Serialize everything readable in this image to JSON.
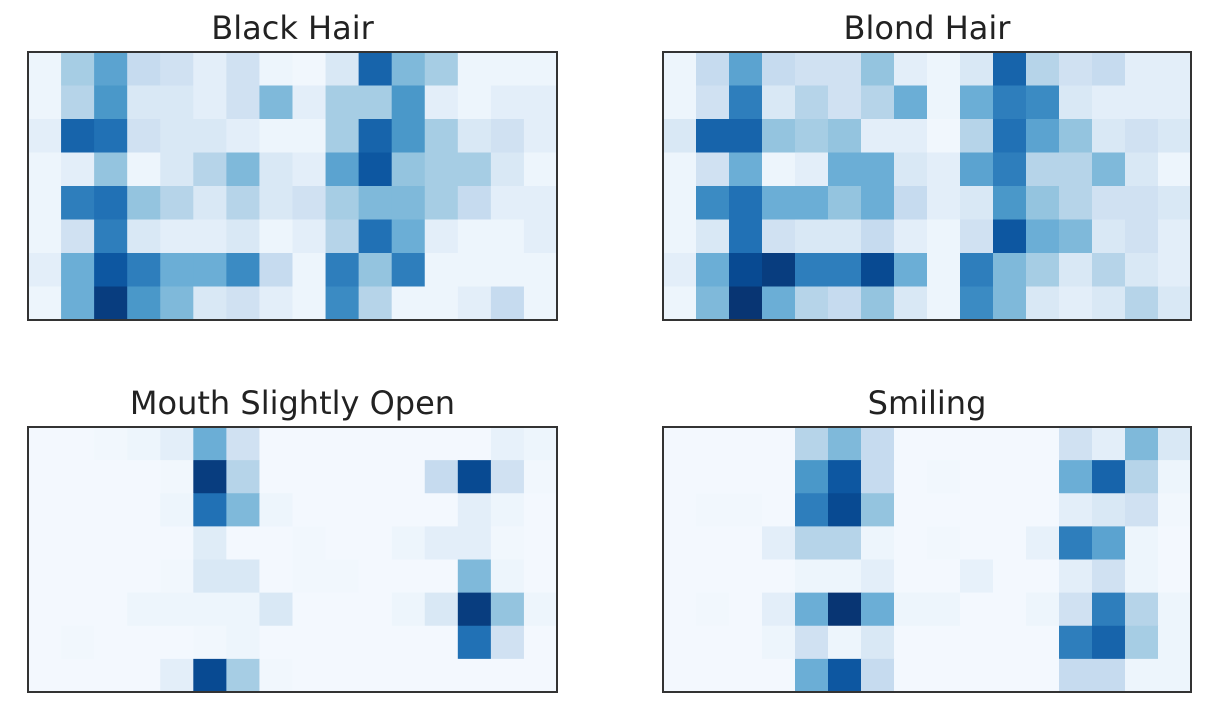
{
  "chart_data": [
    {
      "type": "heatmap",
      "title": "Black Hair",
      "colormap": "Blues",
      "zlim": [
        0,
        1
      ],
      "z": [
        [
          0.05,
          0.35,
          0.55,
          0.25,
          0.2,
          0.1,
          0.2,
          0.05,
          0.03,
          0.15,
          0.8,
          0.45,
          0.35,
          0.05,
          0.05,
          0.05
        ],
        [
          0.05,
          0.3,
          0.6,
          0.15,
          0.15,
          0.1,
          0.2,
          0.45,
          0.1,
          0.35,
          0.35,
          0.6,
          0.1,
          0.05,
          0.1,
          0.1
        ],
        [
          0.1,
          0.8,
          0.75,
          0.2,
          0.15,
          0.15,
          0.1,
          0.05,
          0.05,
          0.35,
          0.8,
          0.6,
          0.35,
          0.15,
          0.2,
          0.1
        ],
        [
          0.05,
          0.1,
          0.4,
          0.05,
          0.15,
          0.3,
          0.45,
          0.15,
          0.1,
          0.55,
          0.85,
          0.4,
          0.35,
          0.35,
          0.15,
          0.05
        ],
        [
          0.05,
          0.7,
          0.75,
          0.4,
          0.3,
          0.15,
          0.3,
          0.15,
          0.2,
          0.35,
          0.45,
          0.45,
          0.35,
          0.25,
          0.1,
          0.1
        ],
        [
          0.05,
          0.2,
          0.7,
          0.15,
          0.1,
          0.1,
          0.15,
          0.05,
          0.1,
          0.3,
          0.75,
          0.5,
          0.1,
          0.05,
          0.05,
          0.1
        ],
        [
          0.1,
          0.5,
          0.85,
          0.7,
          0.5,
          0.5,
          0.65,
          0.25,
          0.05,
          0.7,
          0.4,
          0.7,
          0.05,
          0.05,
          0.05,
          0.05
        ],
        [
          0.05,
          0.5,
          0.95,
          0.6,
          0.45,
          0.15,
          0.2,
          0.1,
          0.05,
          0.65,
          0.3,
          0.05,
          0.05,
          0.1,
          0.25,
          0.05
        ]
      ]
    },
    {
      "type": "heatmap",
      "title": "Blond Hair",
      "colormap": "Blues",
      "zlim": [
        0,
        1
      ],
      "z": [
        [
          0.05,
          0.25,
          0.55,
          0.25,
          0.2,
          0.2,
          0.4,
          0.1,
          0.05,
          0.15,
          0.8,
          0.3,
          0.2,
          0.25,
          0.1,
          0.1
        ],
        [
          0.05,
          0.2,
          0.7,
          0.15,
          0.3,
          0.2,
          0.3,
          0.5,
          0.05,
          0.5,
          0.7,
          0.65,
          0.15,
          0.1,
          0.1,
          0.1
        ],
        [
          0.15,
          0.8,
          0.8,
          0.4,
          0.35,
          0.4,
          0.1,
          0.1,
          0.03,
          0.3,
          0.75,
          0.55,
          0.4,
          0.15,
          0.2,
          0.15
        ],
        [
          0.05,
          0.2,
          0.5,
          0.05,
          0.1,
          0.5,
          0.5,
          0.15,
          0.1,
          0.55,
          0.7,
          0.3,
          0.3,
          0.45,
          0.15,
          0.05
        ],
        [
          0.05,
          0.65,
          0.75,
          0.5,
          0.5,
          0.4,
          0.5,
          0.25,
          0.1,
          0.15,
          0.6,
          0.4,
          0.3,
          0.2,
          0.2,
          0.15
        ],
        [
          0.05,
          0.15,
          0.75,
          0.2,
          0.15,
          0.15,
          0.25,
          0.1,
          0.05,
          0.2,
          0.85,
          0.5,
          0.45,
          0.15,
          0.2,
          0.1
        ],
        [
          0.1,
          0.5,
          0.9,
          0.95,
          0.7,
          0.7,
          0.9,
          0.5,
          0.05,
          0.7,
          0.45,
          0.35,
          0.15,
          0.3,
          0.15,
          0.1
        ],
        [
          0.05,
          0.45,
          0.98,
          0.5,
          0.3,
          0.25,
          0.4,
          0.15,
          0.05,
          0.65,
          0.45,
          0.15,
          0.1,
          0.15,
          0.3,
          0.15
        ]
      ]
    },
    {
      "type": "heatmap",
      "title": "Mouth Slightly Open",
      "colormap": "Blues",
      "zlim": [
        0,
        1
      ],
      "z": [
        [
          0.02,
          0.02,
          0.03,
          0.05,
          0.1,
          0.5,
          0.2,
          0.02,
          0.02,
          0.02,
          0.02,
          0.02,
          0.02,
          0.02,
          0.08,
          0.05
        ],
        [
          0.02,
          0.02,
          0.02,
          0.02,
          0.03,
          0.95,
          0.3,
          0.02,
          0.02,
          0.02,
          0.02,
          0.02,
          0.25,
          0.9,
          0.2,
          0.03
        ],
        [
          0.02,
          0.02,
          0.02,
          0.02,
          0.05,
          0.75,
          0.45,
          0.05,
          0.02,
          0.02,
          0.02,
          0.02,
          0.02,
          0.1,
          0.05,
          0.02
        ],
        [
          0.02,
          0.02,
          0.02,
          0.02,
          0.02,
          0.12,
          0.02,
          0.02,
          0.03,
          0.02,
          0.02,
          0.05,
          0.1,
          0.1,
          0.03,
          0.02
        ],
        [
          0.02,
          0.02,
          0.02,
          0.02,
          0.03,
          0.15,
          0.15,
          0.02,
          0.03,
          0.03,
          0.02,
          0.02,
          0.02,
          0.45,
          0.05,
          0.02
        ],
        [
          0.02,
          0.02,
          0.02,
          0.05,
          0.05,
          0.05,
          0.05,
          0.15,
          0.02,
          0.02,
          0.02,
          0.05,
          0.15,
          0.95,
          0.4,
          0.05
        ],
        [
          0.02,
          0.03,
          0.02,
          0.02,
          0.02,
          0.03,
          0.05,
          0.02,
          0.02,
          0.02,
          0.02,
          0.02,
          0.02,
          0.75,
          0.2,
          0.02
        ],
        [
          0.02,
          0.02,
          0.02,
          0.02,
          0.1,
          0.9,
          0.35,
          0.03,
          0.02,
          0.02,
          0.02,
          0.02,
          0.02,
          0.02,
          0.02,
          0.02
        ]
      ]
    },
    {
      "type": "heatmap",
      "title": "Smiling",
      "colormap": "Blues",
      "zlim": [
        0,
        1
      ],
      "z": [
        [
          0.02,
          0.02,
          0.02,
          0.02,
          0.3,
          0.45,
          0.25,
          0.02,
          0.02,
          0.02,
          0.02,
          0.02,
          0.2,
          0.1,
          0.45,
          0.15
        ],
        [
          0.02,
          0.02,
          0.02,
          0.02,
          0.6,
          0.85,
          0.25,
          0.02,
          0.03,
          0.02,
          0.02,
          0.02,
          0.5,
          0.8,
          0.3,
          0.05
        ],
        [
          0.02,
          0.03,
          0.03,
          0.02,
          0.7,
          0.9,
          0.4,
          0.02,
          0.02,
          0.02,
          0.02,
          0.02,
          0.1,
          0.15,
          0.2,
          0.03
        ],
        [
          0.02,
          0.02,
          0.02,
          0.1,
          0.3,
          0.3,
          0.05,
          0.02,
          0.03,
          0.02,
          0.02,
          0.08,
          0.7,
          0.55,
          0.05,
          0.02
        ],
        [
          0.02,
          0.02,
          0.02,
          0.02,
          0.05,
          0.05,
          0.1,
          0.02,
          0.02,
          0.08,
          0.02,
          0.02,
          0.1,
          0.2,
          0.05,
          0.02
        ],
        [
          0.02,
          0.03,
          0.02,
          0.1,
          0.5,
          0.98,
          0.5,
          0.05,
          0.05,
          0.02,
          0.02,
          0.05,
          0.2,
          0.7,
          0.3,
          0.05
        ],
        [
          0.02,
          0.02,
          0.02,
          0.05,
          0.2,
          0.05,
          0.15,
          0.02,
          0.02,
          0.02,
          0.02,
          0.02,
          0.7,
          0.8,
          0.35,
          0.05
        ],
        [
          0.02,
          0.02,
          0.02,
          0.02,
          0.5,
          0.85,
          0.25,
          0.02,
          0.02,
          0.02,
          0.02,
          0.02,
          0.25,
          0.25,
          0.05,
          0.05
        ]
      ]
    }
  ]
}
